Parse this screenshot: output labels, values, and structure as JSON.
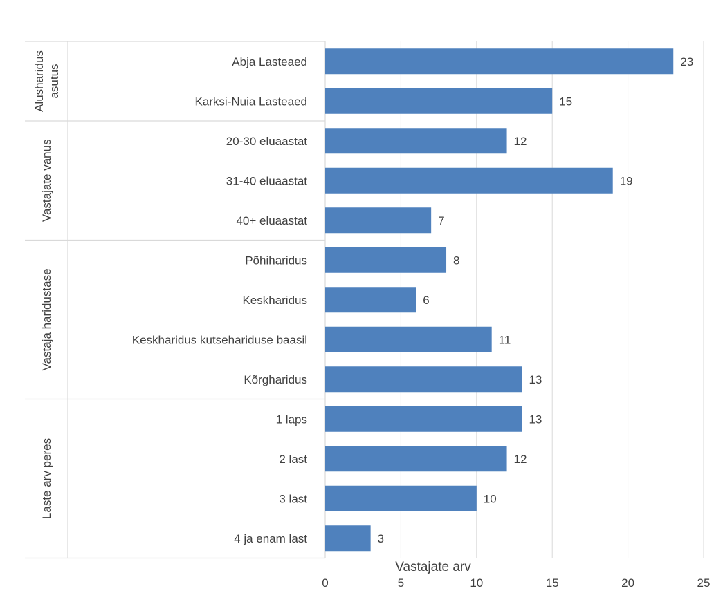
{
  "chart_data": {
    "type": "bar",
    "orientation": "horizontal",
    "xlabel": "Vastajate arv",
    "xlim": [
      0,
      25
    ],
    "xticks": [
      0,
      5,
      10,
      15,
      20,
      25
    ],
    "grid": true,
    "bar_color": "#4f81bd",
    "groups": [
      {
        "name": "Alusharidus asutus",
        "name_lines": [
          "Alusharidus",
          "asutus"
        ],
        "categories": [
          "Abja Lasteaed",
          "Karksi-Nuia Lasteaed"
        ],
        "values": [
          23,
          15
        ]
      },
      {
        "name": "Vastajate vanus",
        "name_lines": [
          "Vastajate vanus"
        ],
        "categories": [
          "20-30 eluaastat",
          "31-40 eluaastat",
          "40+ eluaastat"
        ],
        "values": [
          12,
          19,
          7
        ]
      },
      {
        "name": "Vastaja haridustase",
        "name_lines": [
          "Vastaja haridustase"
        ],
        "categories": [
          "Põhiharidus",
          "Keskharidus",
          "Keskharidus kutsehariduse baasil",
          "Kõrgharidus"
        ],
        "values": [
          8,
          6,
          11,
          13
        ]
      },
      {
        "name": "Laste arv peres",
        "name_lines": [
          "Laste arv peres"
        ],
        "categories": [
          "1 laps",
          "2 last",
          "3 last",
          "4 ja enam last"
        ],
        "values": [
          13,
          12,
          10,
          3
        ]
      }
    ]
  }
}
